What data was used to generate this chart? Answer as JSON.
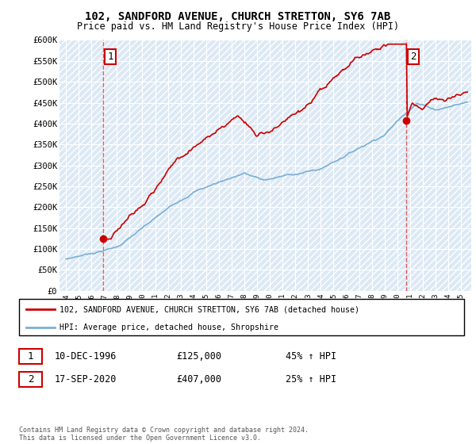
{
  "title": "102, SANDFORD AVENUE, CHURCH STRETTON, SY6 7AB",
  "subtitle": "Price paid vs. HM Land Registry's House Price Index (HPI)",
  "ylim": [
    0,
    600000
  ],
  "yticks": [
    0,
    50000,
    100000,
    150000,
    200000,
    250000,
    300000,
    350000,
    400000,
    450000,
    500000,
    550000,
    600000
  ],
  "ytick_labels": [
    "£0",
    "£50K",
    "£100K",
    "£150K",
    "£200K",
    "£250K",
    "£300K",
    "£350K",
    "£400K",
    "£450K",
    "£500K",
    "£550K",
    "£600K"
  ],
  "sale1_date_num": 1996.94,
  "sale1_price": 125000,
  "sale1_label": "1",
  "sale2_date_num": 2020.72,
  "sale2_price": 407000,
  "sale2_label": "2",
  "hpi_color": "#7bafd4",
  "property_color": "#cc0000",
  "legend_property": "102, SANDFORD AVENUE, CHURCH STRETTON, SY6 7AB (detached house)",
  "legend_hpi": "HPI: Average price, detached house, Shropshire",
  "table_rows": [
    {
      "num": "1",
      "date": "10-DEC-1996",
      "price": "£125,000",
      "pct": "45% ↑ HPI"
    },
    {
      "num": "2",
      "date": "17-SEP-2020",
      "price": "£407,000",
      "pct": "25% ↑ HPI"
    }
  ],
  "footer": "Contains HM Land Registry data © Crown copyright and database right 2024.\nThis data is licensed under the Open Government Licence v3.0.",
  "background_color": "#ffffff",
  "plot_bg_color": "#dce9f5",
  "grid_color": "#ffffff",
  "vline_color": "#dd4444",
  "vline_dates": [
    1996.94,
    2020.72
  ],
  "xlim": [
    1993.5,
    2025.8
  ],
  "xticks_start": 1994,
  "xticks_end": 2025
}
